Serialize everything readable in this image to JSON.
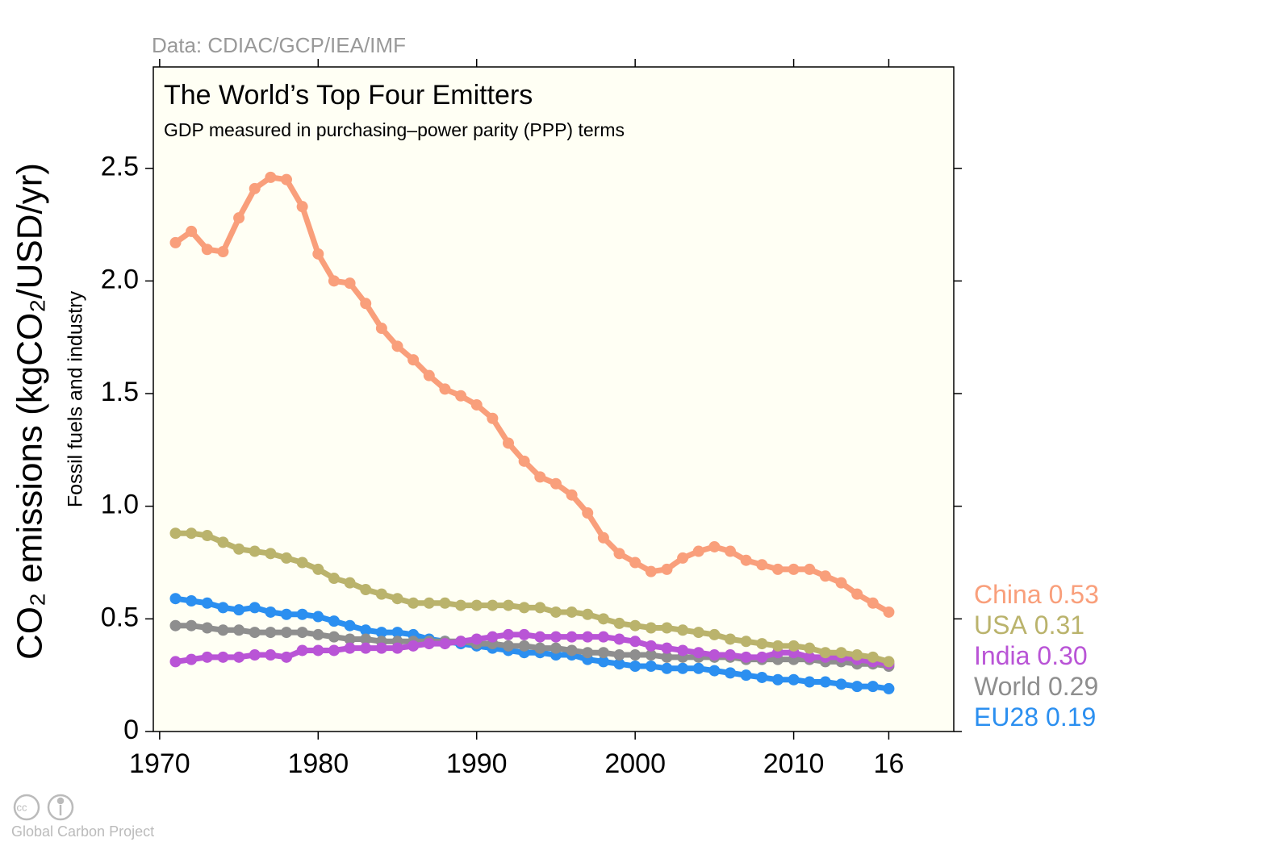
{
  "chart_data": {
    "type": "line",
    "title": "The World’s Top Four Emitters",
    "subtitle": "GDP measured in purchasing–power parity (PPP) terms",
    "source": "Data: CDIAC/GCP/IEA/IMF",
    "y_label": "CO₂ emissions (kgCO₂/USD/yr)",
    "y_sublabel": "Fossil fuels and industry",
    "credit": "Global Carbon Project",
    "x": [
      1971,
      1972,
      1973,
      1974,
      1975,
      1976,
      1977,
      1978,
      1979,
      1980,
      1981,
      1982,
      1983,
      1984,
      1985,
      1986,
      1987,
      1988,
      1989,
      1990,
      1991,
      1992,
      1993,
      1994,
      1995,
      1996,
      1997,
      1998,
      1999,
      2000,
      2001,
      2002,
      2003,
      2004,
      2005,
      2006,
      2007,
      2008,
      2009,
      2010,
      2011,
      2012,
      2013,
      2014,
      2015,
      2016
    ],
    "xlim": [
      1969.6,
      2020.1
    ],
    "xticks": [
      1970,
      1980,
      1990,
      2000,
      2010,
      {
        "value": 2016,
        "label": "16"
      }
    ],
    "ylim": [
      0,
      2.95
    ],
    "yticks": [
      0,
      0.5,
      {
        "value": 1,
        "label": "1.0"
      },
      1.5,
      {
        "value": 2,
        "label": "2.0"
      },
      2.5
    ],
    "series": [
      {
        "name": "China",
        "color": "#f99f7b",
        "end_label": "0.53",
        "values": [
          2.17,
          2.22,
          2.14,
          2.13,
          2.28,
          2.41,
          2.46,
          2.45,
          2.33,
          2.12,
          2.0,
          1.99,
          1.9,
          1.79,
          1.71,
          1.65,
          1.58,
          1.52,
          1.49,
          1.45,
          1.39,
          1.28,
          1.2,
          1.13,
          1.1,
          1.05,
          0.97,
          0.86,
          0.79,
          0.75,
          0.71,
          0.72,
          0.77,
          0.8,
          0.82,
          0.8,
          0.76,
          0.74,
          0.72,
          0.72,
          0.72,
          0.69,
          0.66,
          0.61,
          0.57,
          0.53
        ]
      },
      {
        "name": "USA",
        "color": "#bab36c",
        "end_label": "0.31",
        "values": [
          0.88,
          0.88,
          0.87,
          0.84,
          0.81,
          0.8,
          0.79,
          0.77,
          0.75,
          0.72,
          0.68,
          0.66,
          0.63,
          0.61,
          0.59,
          0.57,
          0.57,
          0.57,
          0.56,
          0.56,
          0.56,
          0.56,
          0.55,
          0.55,
          0.53,
          0.53,
          0.52,
          0.5,
          0.48,
          0.47,
          0.46,
          0.46,
          0.45,
          0.44,
          0.43,
          0.41,
          0.4,
          0.39,
          0.38,
          0.38,
          0.37,
          0.35,
          0.35,
          0.34,
          0.33,
          0.31
        ]
      },
      {
        "name": "India",
        "color": "#b954d6",
        "end_label": "0.30",
        "values": [
          0.31,
          0.32,
          0.33,
          0.33,
          0.33,
          0.34,
          0.34,
          0.33,
          0.36,
          0.36,
          0.36,
          0.37,
          0.37,
          0.37,
          0.37,
          0.38,
          0.39,
          0.39,
          0.4,
          0.41,
          0.42,
          0.43,
          0.43,
          0.42,
          0.42,
          0.42,
          0.42,
          0.42,
          0.41,
          0.4,
          0.38,
          0.37,
          0.36,
          0.35,
          0.34,
          0.34,
          0.33,
          0.33,
          0.35,
          0.35,
          0.33,
          0.33,
          0.33,
          0.32,
          0.31,
          0.3
        ]
      },
      {
        "name": "World",
        "color": "#8e8e8e",
        "end_label": "0.29",
        "values": [
          0.47,
          0.47,
          0.46,
          0.45,
          0.45,
          0.44,
          0.44,
          0.44,
          0.44,
          0.43,
          0.42,
          0.41,
          0.41,
          0.4,
          0.4,
          0.4,
          0.4,
          0.4,
          0.4,
          0.39,
          0.39,
          0.38,
          0.38,
          0.37,
          0.37,
          0.36,
          0.35,
          0.35,
          0.34,
          0.34,
          0.34,
          0.33,
          0.33,
          0.33,
          0.33,
          0.33,
          0.32,
          0.32,
          0.32,
          0.32,
          0.32,
          0.31,
          0.31,
          0.3,
          0.3,
          0.29
        ]
      },
      {
        "name": "EU28",
        "color": "#2b8ff0",
        "end_label": "0.19",
        "values": [
          0.59,
          0.58,
          0.57,
          0.55,
          0.54,
          0.55,
          0.53,
          0.52,
          0.52,
          0.51,
          0.49,
          0.47,
          0.45,
          0.44,
          0.44,
          0.43,
          0.41,
          0.4,
          0.39,
          0.38,
          0.37,
          0.36,
          0.35,
          0.35,
          0.34,
          0.34,
          0.32,
          0.31,
          0.3,
          0.29,
          0.29,
          0.28,
          0.28,
          0.28,
          0.27,
          0.26,
          0.25,
          0.24,
          0.23,
          0.23,
          0.22,
          0.22,
          0.21,
          0.2,
          0.2,
          0.19
        ]
      }
    ]
  }
}
